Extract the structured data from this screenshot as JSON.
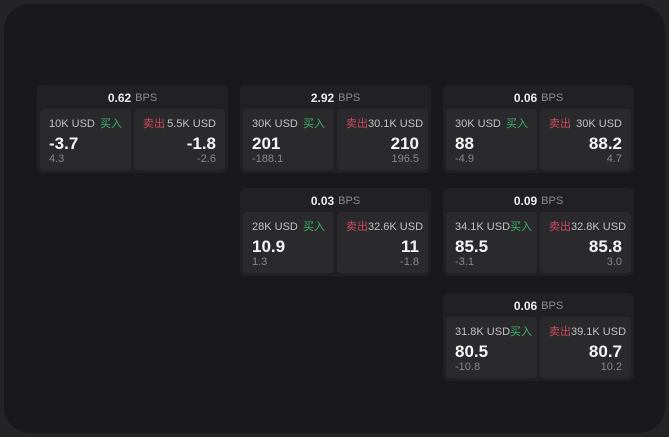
{
  "labels": {
    "bps_unit": "BPS",
    "buy": "买入",
    "sell": "卖出"
  },
  "colors": {
    "buy": "#3db26c",
    "sell": "#cb4a60",
    "page-bg": "#242427",
    "window-bg": "#19191b",
    "card-bg": "#212123",
    "panel-bg": "#2a2a2c"
  },
  "cards": [
    {
      "bps": "0.62",
      "buy": {
        "amount": "10K USD",
        "price": "-3.7",
        "change": "4.3"
      },
      "sell": {
        "amount": "5.5K USD",
        "price": "-1.8",
        "change": "-2.6"
      }
    },
    {
      "bps": "2.92",
      "buy": {
        "amount": "30K USD",
        "price": "201",
        "change": "-188.1"
      },
      "sell": {
        "amount": "30.1K USD",
        "price": "210",
        "change": "196.5"
      }
    },
    {
      "bps": "0.06",
      "buy": {
        "amount": "30K USD",
        "price": "88",
        "change": "-4.9"
      },
      "sell": {
        "amount": "30K USD",
        "price": "88.2",
        "change": "4.7"
      }
    },
    {
      "bps": "0.03",
      "buy": {
        "amount": "28K USD",
        "price": "10.9",
        "change": "1.3"
      },
      "sell": {
        "amount": "32.6K USD",
        "price": "11",
        "change": "-1.8"
      }
    },
    {
      "bps": "0.09",
      "buy": {
        "amount": "34.1K USD",
        "price": "85.5",
        "change": "-3.1"
      },
      "sell": {
        "amount": "32.8K USD",
        "price": "85.8",
        "change": "3.0"
      }
    },
    {
      "bps": "0.06",
      "buy": {
        "amount": "31.8K USD",
        "price": "80.5",
        "change": "-10.8"
      },
      "sell": {
        "amount": "39.1K USD",
        "price": "80.7",
        "change": "10.2"
      }
    }
  ]
}
